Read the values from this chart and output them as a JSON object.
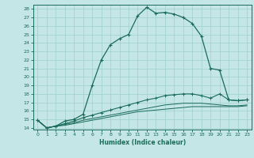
{
  "xlabel": "Humidex (Indice chaleur)",
  "bg_color": "#c5e6e6",
  "grid_color": "#9ecece",
  "line_color": "#1a6b5a",
  "xlim": [
    -0.5,
    23.5
  ],
  "ylim": [
    13.8,
    28.5
  ],
  "xticks": [
    0,
    1,
    2,
    3,
    4,
    5,
    6,
    7,
    8,
    9,
    10,
    11,
    12,
    13,
    14,
    15,
    16,
    17,
    18,
    19,
    20,
    21,
    22,
    23
  ],
  "yticks": [
    14,
    15,
    16,
    17,
    18,
    19,
    20,
    21,
    22,
    23,
    24,
    25,
    26,
    27,
    28
  ],
  "c1x": [
    0,
    1,
    2,
    3,
    4,
    5,
    6,
    7,
    8,
    9,
    10,
    11,
    12,
    13,
    14,
    15,
    16,
    17,
    18,
    19,
    20,
    21,
    22,
    23
  ],
  "c1y": [
    14.9,
    14.0,
    14.2,
    14.8,
    15.0,
    15.6,
    19.0,
    22.0,
    23.8,
    24.5,
    25.0,
    27.2,
    28.2,
    27.5,
    27.6,
    27.4,
    27.0,
    26.3,
    24.8,
    21.0,
    20.8,
    17.3,
    17.2,
    17.3
  ],
  "c2x": [
    0,
    1,
    2,
    3,
    4,
    5,
    6,
    7,
    8,
    9,
    10,
    11,
    12,
    13,
    14,
    15,
    16,
    17,
    18,
    19,
    20,
    21,
    22,
    23
  ],
  "c2y": [
    14.9,
    14.0,
    14.2,
    14.5,
    14.8,
    15.2,
    15.5,
    15.8,
    16.1,
    16.4,
    16.7,
    17.0,
    17.3,
    17.5,
    17.8,
    17.9,
    18.0,
    18.0,
    17.8,
    17.5,
    18.0,
    17.3,
    17.2,
    17.3
  ],
  "c3x": [
    0,
    1,
    2,
    3,
    4,
    5,
    6,
    7,
    8,
    9,
    10,
    11,
    12,
    13,
    14,
    15,
    16,
    17,
    18,
    19,
    20,
    21,
    22,
    23
  ],
  "c3y": [
    14.9,
    14.0,
    14.2,
    14.4,
    14.6,
    14.9,
    15.1,
    15.3,
    15.5,
    15.7,
    15.9,
    16.1,
    16.3,
    16.5,
    16.7,
    16.8,
    16.9,
    16.9,
    16.9,
    16.8,
    16.7,
    16.6,
    16.6,
    16.7
  ],
  "c4x": [
    0,
    1,
    2,
    3,
    4,
    5,
    6,
    7,
    8,
    9,
    10,
    11,
    12,
    13,
    14,
    15,
    16,
    17,
    18,
    19,
    20,
    21,
    22,
    23
  ],
  "c4y": [
    14.9,
    14.0,
    14.2,
    14.3,
    14.5,
    14.7,
    14.9,
    15.1,
    15.3,
    15.5,
    15.7,
    15.9,
    16.0,
    16.1,
    16.2,
    16.3,
    16.4,
    16.5,
    16.5,
    16.5,
    16.5,
    16.5,
    16.5,
    16.6
  ]
}
